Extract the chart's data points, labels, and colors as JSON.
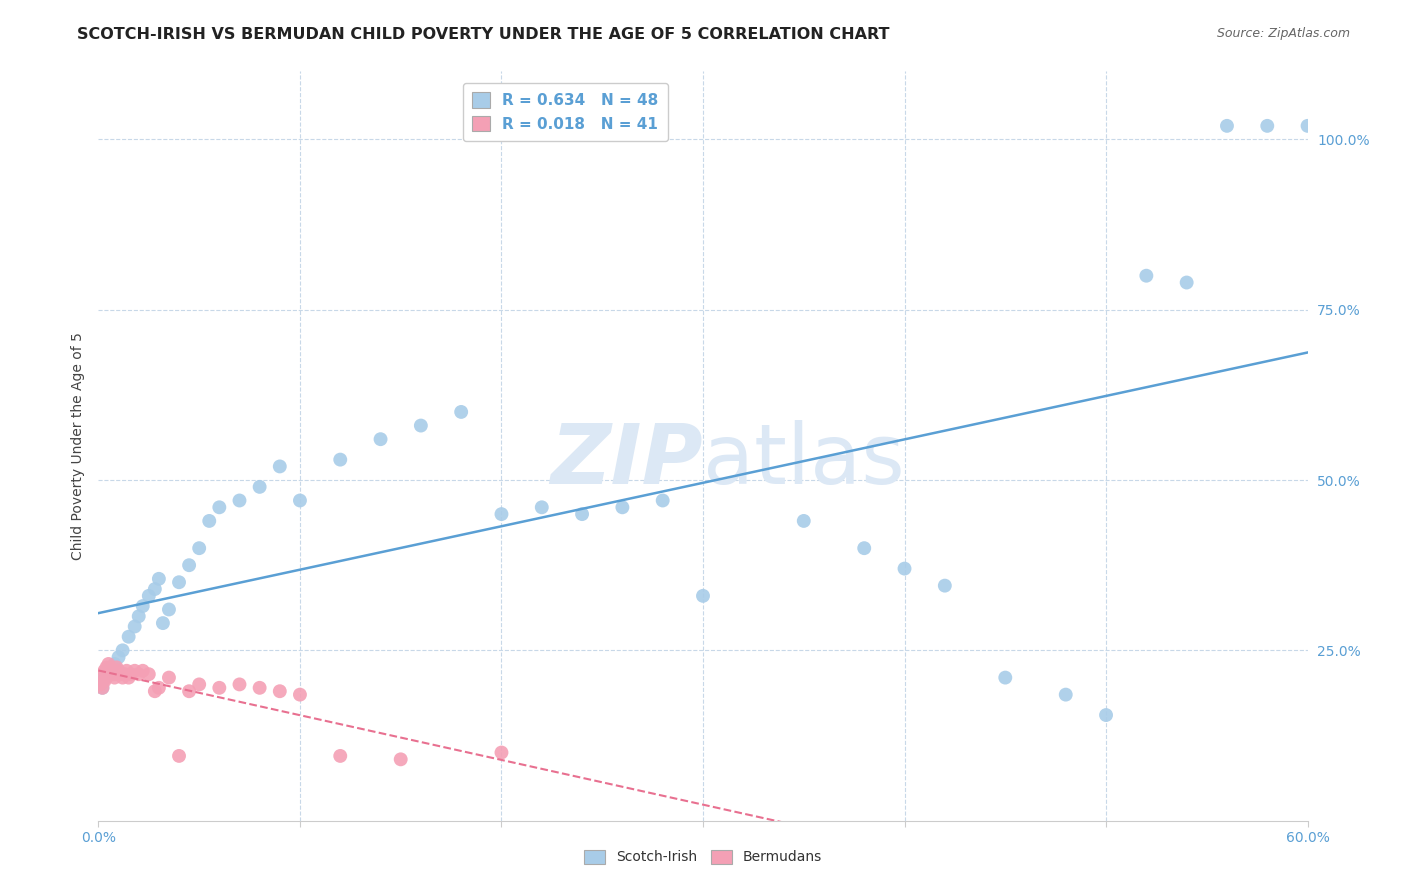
{
  "title": "SCOTCH-IRISH VS BERMUDAN CHILD POVERTY UNDER THE AGE OF 5 CORRELATION CHART",
  "source": "Source: ZipAtlas.com",
  "ylabel": "Child Poverty Under the Age of 5",
  "xlim": [
    0.0,
    0.6
  ],
  "ylim": [
    0.0,
    1.1
  ],
  "scotch_irish_color": "#a8cce8",
  "bermuda_color": "#f4a0b5",
  "scotch_irish_line_color": "#5a9fd4",
  "bermuda_line_color": "#e87090",
  "grid_color": "#c8d8e8",
  "watermark_color": "#dce8f5",
  "si_x": [
    0.002,
    0.003,
    0.004,
    0.005,
    0.006,
    0.008,
    0.01,
    0.012,
    0.015,
    0.018,
    0.02,
    0.022,
    0.025,
    0.028,
    0.03,
    0.032,
    0.035,
    0.04,
    0.045,
    0.05,
    0.055,
    0.06,
    0.07,
    0.08,
    0.09,
    0.1,
    0.12,
    0.14,
    0.16,
    0.18,
    0.2,
    0.22,
    0.24,
    0.26,
    0.28,
    0.3,
    0.35,
    0.38,
    0.4,
    0.42,
    0.45,
    0.48,
    0.5,
    0.52,
    0.54,
    0.56,
    0.58,
    0.6
  ],
  "si_y": [
    0.195,
    0.21,
    0.22,
    0.215,
    0.225,
    0.23,
    0.24,
    0.25,
    0.27,
    0.285,
    0.3,
    0.315,
    0.33,
    0.34,
    0.355,
    0.29,
    0.31,
    0.35,
    0.375,
    0.4,
    0.44,
    0.46,
    0.47,
    0.49,
    0.52,
    0.47,
    0.53,
    0.56,
    0.58,
    0.6,
    0.45,
    0.46,
    0.45,
    0.46,
    0.47,
    0.33,
    0.44,
    0.4,
    0.37,
    0.345,
    0.21,
    0.185,
    0.155,
    0.8,
    0.79,
    1.02,
    1.02,
    1.02
  ],
  "be_x": [
    0.001,
    0.002,
    0.002,
    0.003,
    0.003,
    0.004,
    0.004,
    0.005,
    0.005,
    0.006,
    0.006,
    0.007,
    0.007,
    0.008,
    0.008,
    0.009,
    0.01,
    0.011,
    0.012,
    0.013,
    0.014,
    0.015,
    0.016,
    0.018,
    0.02,
    0.022,
    0.025,
    0.028,
    0.03,
    0.035,
    0.04,
    0.045,
    0.05,
    0.06,
    0.07,
    0.08,
    0.09,
    0.1,
    0.12,
    0.15,
    0.2
  ],
  "be_y": [
    0.2,
    0.195,
    0.215,
    0.205,
    0.22,
    0.21,
    0.225,
    0.215,
    0.23,
    0.22,
    0.225,
    0.215,
    0.22,
    0.21,
    0.215,
    0.225,
    0.22,
    0.215,
    0.21,
    0.215,
    0.22,
    0.21,
    0.215,
    0.22,
    0.215,
    0.22,
    0.215,
    0.19,
    0.195,
    0.21,
    0.095,
    0.19,
    0.2,
    0.195,
    0.2,
    0.195,
    0.19,
    0.185,
    0.095,
    0.09,
    0.1
  ],
  "ytick_right_labels": [
    "",
    "25.0%",
    "50.0%",
    "75.0%",
    "100.0%"
  ],
  "ytick_vals": [
    0.0,
    0.25,
    0.5,
    0.75,
    1.0
  ],
  "xtick_vals": [
    0.0,
    0.1,
    0.2,
    0.3,
    0.4,
    0.5,
    0.6
  ],
  "xtick_labels": [
    "0.0%",
    "",
    "",
    "",
    "",
    "",
    "60.0%"
  ]
}
